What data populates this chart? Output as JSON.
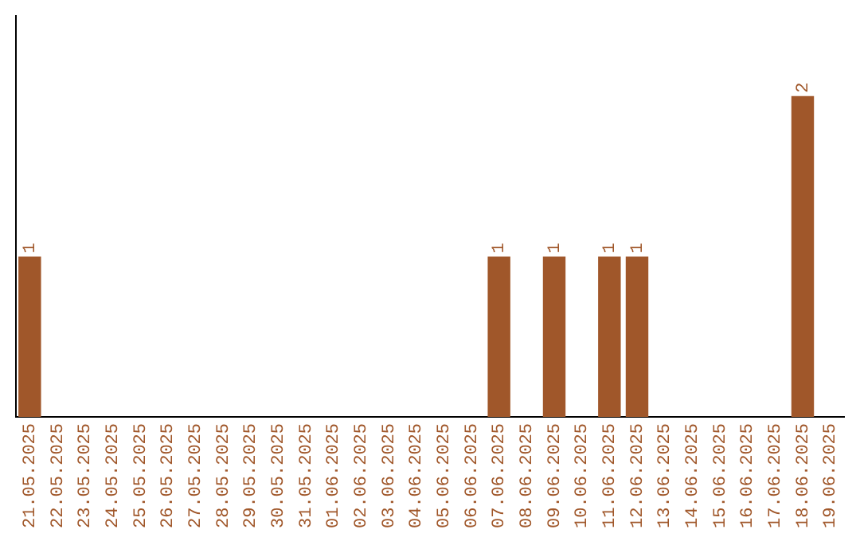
{
  "chart_data": {
    "type": "bar",
    "categories": [
      "21.05.2025",
      "22.05.2025",
      "23.05.2025",
      "24.05.2025",
      "25.05.2025",
      "26.05.2025",
      "27.05.2025",
      "28.05.2025",
      "29.05.2025",
      "30.05.2025",
      "31.05.2025",
      "01.06.2025",
      "02.06.2025",
      "03.06.2025",
      "04.06.2025",
      "05.06.2025",
      "06.06.2025",
      "07.06.2025",
      "08.06.2025",
      "09.06.2025",
      "10.06.2025",
      "11.06.2025",
      "12.06.2025",
      "13.06.2025",
      "14.06.2025",
      "15.06.2025",
      "16.06.2025",
      "17.06.2025",
      "18.06.2025",
      "19.06.2025"
    ],
    "values": [
      1,
      0,
      0,
      0,
      0,
      0,
      0,
      0,
      0,
      0,
      0,
      0,
      0,
      0,
      0,
      0,
      0,
      1,
      0,
      1,
      0,
      1,
      1,
      0,
      0,
      0,
      0,
      0,
      2,
      0
    ],
    "value_labels": [
      "1",
      null,
      null,
      null,
      null,
      null,
      null,
      null,
      null,
      null,
      null,
      null,
      null,
      null,
      null,
      null,
      null,
      "1",
      null,
      "1",
      null,
      "1",
      "1",
      null,
      null,
      null,
      null,
      null,
      "2",
      null
    ],
    "color": "#a0572a",
    "tick_labels": "x",
    "grid": false,
    "legend": false
  }
}
